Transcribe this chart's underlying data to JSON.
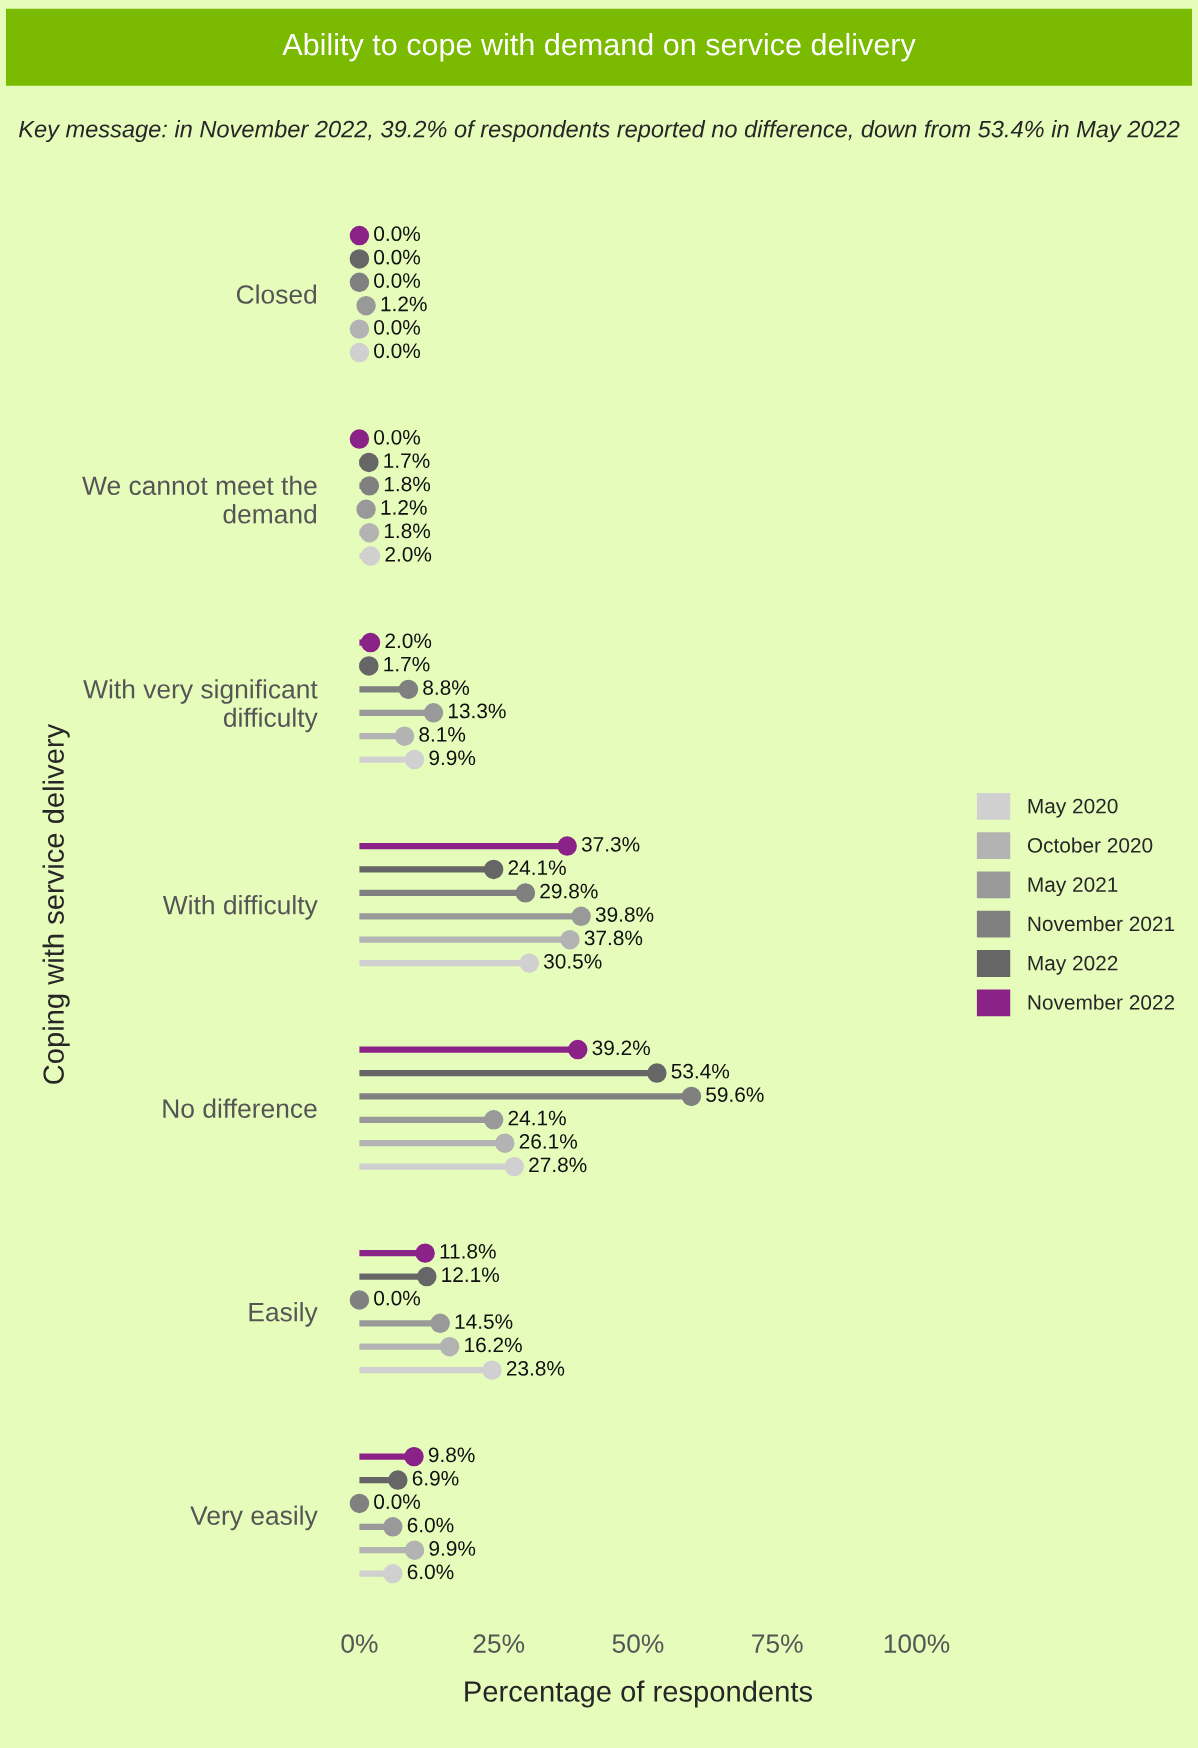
{
  "chart_data": {
    "type": "lollipop",
    "orientation": "horizontal",
    "title": "Ability to cope with demand on service delivery",
    "subtitle": "Key message: in November 2022, 39.2% of respondents reported no difference, down from 53.4% in May 2022",
    "xlabel": "Percentage of respondents",
    "ylabel": "Coping with service delivery",
    "categories": [
      "Closed",
      "We cannot meet the demand",
      "With very significant difficulty",
      "With difficulty",
      "No difference",
      "Easily",
      "Very easily"
    ],
    "xlim": [
      0,
      100
    ],
    "xticks": [
      {
        "value": 0,
        "label": "0%"
      },
      {
        "value": 25,
        "label": "25%"
      },
      {
        "value": 50,
        "label": "50%"
      },
      {
        "value": 75,
        "label": "75%"
      },
      {
        "value": 100,
        "label": "100%"
      }
    ],
    "series": [
      {
        "name": "May 2020",
        "color": "#d0d0d0",
        "values": [
          0.0,
          2.0,
          9.9,
          30.5,
          27.8,
          23.8,
          6.0
        ],
        "value_labels": [
          "0.0%",
          "2.0%",
          "9.9%",
          "30.5%",
          "27.8%",
          "23.8%",
          "6.0%"
        ]
      },
      {
        "name": "October 2020",
        "color": "#b3b3b3",
        "values": [
          0.0,
          1.8,
          8.1,
          37.8,
          26.1,
          16.2,
          9.9
        ],
        "value_labels": [
          "0.0%",
          "1.8%",
          "8.1%",
          "37.8%",
          "26.1%",
          "16.2%",
          "9.9%"
        ]
      },
      {
        "name": "May 2021",
        "color": "#999999",
        "values": [
          1.2,
          1.2,
          13.3,
          39.8,
          24.1,
          14.5,
          6.0
        ],
        "value_labels": [
          "1.2%",
          "1.2%",
          "13.3%",
          "39.8%",
          "24.1%",
          "14.5%",
          "6.0%"
        ]
      },
      {
        "name": "November 2021",
        "color": "#808080",
        "values": [
          0.0,
          1.8,
          8.8,
          29.8,
          59.6,
          0.0,
          0.0
        ],
        "value_labels": [
          "0.0%",
          "1.8%",
          "8.8%",
          "29.8%",
          "59.6%",
          "0.0%",
          "0.0%"
        ]
      },
      {
        "name": "May 2022",
        "color": "#666666",
        "values": [
          0.0,
          1.7,
          1.7,
          24.1,
          53.4,
          12.1,
          6.9
        ],
        "value_labels": [
          "0.0%",
          "1.7%",
          "1.7%",
          "24.1%",
          "53.4%",
          "12.1%",
          "6.9%"
        ]
      },
      {
        "name": "November 2022",
        "color": "#8b2288",
        "values": [
          0.0,
          0.0,
          2.0,
          37.3,
          39.2,
          11.8,
          9.8
        ],
        "value_labels": [
          "0.0%",
          "0.0%",
          "2.0%",
          "37.3%",
          "39.2%",
          "11.8%",
          "9.8%"
        ]
      }
    ],
    "marker": "circle",
    "legend": "right",
    "grid": false
  }
}
